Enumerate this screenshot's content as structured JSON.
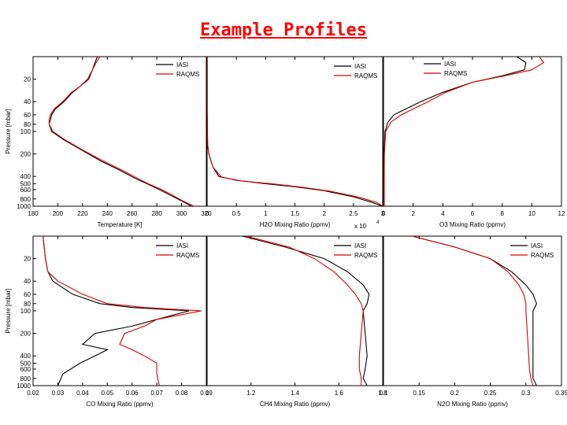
{
  "title": "Example Profiles",
  "colors": {
    "iasi": "#000000",
    "raqms": "#e00000"
  },
  "chart_data": [
    {
      "type": "line",
      "xlabel": "Temperature [K]",
      "ylabel": "Pressure [mbar]",
      "xlim": [
        180,
        320
      ],
      "xticks": [
        "180",
        "200",
        "220",
        "240",
        "260",
        "280",
        "300",
        "320"
      ],
      "yscale": "log",
      "ylim": [
        1000,
        10
      ],
      "yticks": [
        "20",
        "40",
        "60",
        "80",
        "100",
        "200",
        "400",
        "500",
        "600",
        "800",
        "1000"
      ],
      "legend": "top-right",
      "series": [
        {
          "name": "IASI",
          "points": [
            [
              232,
              10
            ],
            [
              230,
              12
            ],
            [
              228,
              15
            ],
            [
              225,
              20
            ],
            [
              218,
              25
            ],
            [
              212,
              30
            ],
            [
              205,
              40
            ],
            [
              198,
              50
            ],
            [
              195,
              60
            ],
            [
              194,
              70
            ],
            [
              193,
              80
            ],
            [
              195,
              100
            ],
            [
              205,
              130
            ],
            [
              220,
              180
            ],
            [
              235,
              250
            ],
            [
              250,
              330
            ],
            [
              262,
              420
            ],
            [
              272,
              500
            ],
            [
              282,
              600
            ],
            [
              290,
              700
            ],
            [
              300,
              850
            ],
            [
              308,
              1000
            ]
          ]
        },
        {
          "name": "RAQMS",
          "points": [
            [
              234,
              10
            ],
            [
              231,
              12
            ],
            [
              228,
              15
            ],
            [
              224,
              20
            ],
            [
              218,
              25
            ],
            [
              211,
              30
            ],
            [
              204,
              40
            ],
            [
              197,
              50
            ],
            [
              194,
              60
            ],
            [
              193,
              70
            ],
            [
              193,
              80
            ],
            [
              196,
              100
            ],
            [
              206,
              130
            ],
            [
              221,
              180
            ],
            [
              237,
              250
            ],
            [
              252,
              330
            ],
            [
              264,
              420
            ],
            [
              273,
              500
            ],
            [
              284,
              600
            ],
            [
              292,
              700
            ],
            [
              301,
              850
            ],
            [
              310,
              1000
            ]
          ]
        }
      ]
    },
    {
      "type": "line",
      "xlabel": "H2O Mixing Ratio (ppmv)",
      "xexponent": "x 10",
      "xexponent_power": "4",
      "xlim": [
        0,
        3
      ],
      "xticks": [
        "0",
        "0.5",
        "1",
        "1.5",
        "2",
        "2.5",
        "3"
      ],
      "yscale": "log",
      "ylim": [
        1000,
        10
      ],
      "legend": "top-right",
      "series": [
        {
          "name": "IASI",
          "points": [
            [
              0.002,
              10
            ],
            [
              0.002,
              50
            ],
            [
              0.005,
              100
            ],
            [
              0.01,
              150
            ],
            [
              0.03,
              200
            ],
            [
              0.1,
              300
            ],
            [
              0.2,
              400
            ],
            [
              0.5,
              450
            ],
            [
              1.0,
              500
            ],
            [
              1.5,
              550
            ],
            [
              2.0,
              620
            ],
            [
              2.5,
              750
            ],
            [
              2.8,
              880
            ],
            [
              3.0,
              1000
            ]
          ]
        },
        {
          "name": "RAQMS",
          "points": [
            [
              0.002,
              10
            ],
            [
              0.002,
              50
            ],
            [
              0.005,
              100
            ],
            [
              0.01,
              150
            ],
            [
              0.03,
              200
            ],
            [
              0.1,
              300
            ],
            [
              0.25,
              410
            ],
            [
              0.6,
              460
            ],
            [
              1.1,
              500
            ],
            [
              1.6,
              555
            ],
            [
              2.1,
              630
            ],
            [
              2.6,
              760
            ],
            [
              2.9,
              890
            ],
            [
              3.0,
              1000
            ]
          ]
        }
      ]
    },
    {
      "type": "line",
      "xlabel": "O3 Mixing Ratio (ppmv)",
      "xlim": [
        0,
        12
      ],
      "xticks": [
        "0",
        "2",
        "4",
        "6",
        "8",
        "10",
        "12"
      ],
      "yscale": "log",
      "ylim": [
        1000,
        10
      ],
      "legend": "top-right",
      "series": [
        {
          "name": "IASI",
          "points": [
            [
              9,
              10
            ],
            [
              9.6,
              12
            ],
            [
              9.5,
              15
            ],
            [
              8,
              18
            ],
            [
              6,
              22
            ],
            [
              4,
              30
            ],
            [
              2.5,
              40
            ],
            [
              1.5,
              50
            ],
            [
              0.7,
              60
            ],
            [
              0.3,
              75
            ],
            [
              0.1,
              100
            ],
            [
              0.05,
              200
            ],
            [
              0.04,
              400
            ],
            [
              0.04,
              1000
            ]
          ]
        },
        {
          "name": "RAQMS",
          "points": [
            [
              10.5,
              10
            ],
            [
              10.8,
              12
            ],
            [
              10,
              15
            ],
            [
              8.2,
              18
            ],
            [
              6,
              22
            ],
            [
              4.2,
              30
            ],
            [
              3,
              40
            ],
            [
              2,
              50
            ],
            [
              1.2,
              60
            ],
            [
              0.5,
              75
            ],
            [
              0.15,
              100
            ],
            [
              0.06,
              200
            ],
            [
              0.05,
              400
            ],
            [
              0.05,
              1000
            ]
          ]
        }
      ]
    },
    {
      "type": "line",
      "xlabel": "CO Mixing Ratio (ppmv)",
      "ylabel": "Pressure [mbar]",
      "xlim": [
        0.02,
        0.09
      ],
      "xticks": [
        "0.02",
        "0.03",
        "0.04",
        "0.05",
        "0.06",
        "0.07",
        "0.08",
        "0.09"
      ],
      "yscale": "log",
      "ylim": [
        1000,
        10
      ],
      "yticks": [
        "20",
        "40",
        "60",
        "80",
        "100",
        "200",
        "400",
        "500",
        "600",
        "800",
        "1000"
      ],
      "legend": "top-right",
      "series": [
        {
          "name": "IASI",
          "points": [
            [
              0.024,
              10
            ],
            [
              0.025,
              20
            ],
            [
              0.026,
              30
            ],
            [
              0.028,
              40
            ],
            [
              0.036,
              60
            ],
            [
              0.047,
              80
            ],
            [
              0.06,
              90
            ],
            [
              0.083,
              100
            ],
            [
              0.07,
              130
            ],
            [
              0.06,
              160
            ],
            [
              0.045,
              200
            ],
            [
              0.04,
              280
            ],
            [
              0.05,
              330
            ],
            [
              0.045,
              400
            ],
            [
              0.039,
              500
            ],
            [
              0.032,
              700
            ],
            [
              0.03,
              1000
            ]
          ]
        },
        {
          "name": "RAQMS",
          "points": [
            [
              0.024,
              10
            ],
            [
              0.025,
              20
            ],
            [
              0.026,
              30
            ],
            [
              0.03,
              40
            ],
            [
              0.04,
              60
            ],
            [
              0.05,
              80
            ],
            [
              0.065,
              90
            ],
            [
              0.088,
              100
            ],
            [
              0.07,
              130
            ],
            [
              0.065,
              160
            ],
            [
              0.057,
              200
            ],
            [
              0.055,
              280
            ],
            [
              0.06,
              330
            ],
            [
              0.065,
              400
            ],
            [
              0.07,
              500
            ],
            [
              0.07,
              700
            ],
            [
              0.071,
              1000
            ]
          ]
        }
      ]
    },
    {
      "type": "line",
      "xlabel": "CH4 Mixing Ratio (ppmv)",
      "xlim": [
        1.0,
        1.9
      ],
      "xticks": [
        "1",
        "1.2",
        "1.4",
        "1.6",
        "1.8"
      ],
      "yscale": "log",
      "ylim": [
        1000,
        10
      ],
      "legend": "top-right",
      "series": [
        {
          "name": "IASI",
          "points": [
            [
              1.18,
              10
            ],
            [
              1.4,
              14
            ],
            [
              1.6,
              20
            ],
            [
              1.72,
              30
            ],
            [
              1.8,
              45
            ],
            [
              1.83,
              60
            ],
            [
              1.82,
              80
            ],
            [
              1.8,
              100
            ],
            [
              1.81,
              200
            ],
            [
              1.82,
              400
            ],
            [
              1.81,
              600
            ],
            [
              1.8,
              800
            ],
            [
              1.82,
              1000
            ]
          ]
        },
        {
          "name": "RAQMS",
          "points": [
            [
              1.2,
              10
            ],
            [
              1.42,
              14
            ],
            [
              1.55,
              20
            ],
            [
              1.65,
              30
            ],
            [
              1.72,
              45
            ],
            [
              1.76,
              60
            ],
            [
              1.79,
              80
            ],
            [
              1.8,
              100
            ],
            [
              1.79,
              200
            ],
            [
              1.78,
              400
            ],
            [
              1.78,
              600
            ],
            [
              1.79,
              800
            ],
            [
              1.79,
              1000
            ]
          ]
        }
      ]
    },
    {
      "type": "line",
      "xlabel": "N2O Mixing Ratio (ppmv)",
      "xlim": [
        0.1,
        0.35
      ],
      "xticks": [
        "0.1",
        "0.15",
        "0.2",
        "0.25",
        "0.3",
        "0.35"
      ],
      "yscale": "log",
      "ylim": [
        1000,
        10
      ],
      "legend": "top-right",
      "series": [
        {
          "name": "IASI",
          "points": [
            [
              0.14,
              10
            ],
            [
              0.2,
              14
            ],
            [
              0.25,
              20
            ],
            [
              0.28,
              30
            ],
            [
              0.3,
              45
            ],
            [
              0.31,
              60
            ],
            [
              0.315,
              80
            ],
            [
              0.31,
              100
            ],
            [
              0.31,
              200
            ],
            [
              0.31,
              400
            ],
            [
              0.31,
              600
            ],
            [
              0.31,
              800
            ],
            [
              0.315,
              1000
            ]
          ]
        },
        {
          "name": "RAQMS",
          "points": [
            [
              0.14,
              10
            ],
            [
              0.2,
              14
            ],
            [
              0.25,
              20
            ],
            [
              0.275,
              30
            ],
            [
              0.29,
              45
            ],
            [
              0.297,
              60
            ],
            [
              0.3,
              80
            ],
            [
              0.3,
              100
            ],
            [
              0.302,
              200
            ],
            [
              0.304,
              400
            ],
            [
              0.305,
              600
            ],
            [
              0.307,
              800
            ],
            [
              0.31,
              1000
            ]
          ]
        }
      ]
    }
  ]
}
